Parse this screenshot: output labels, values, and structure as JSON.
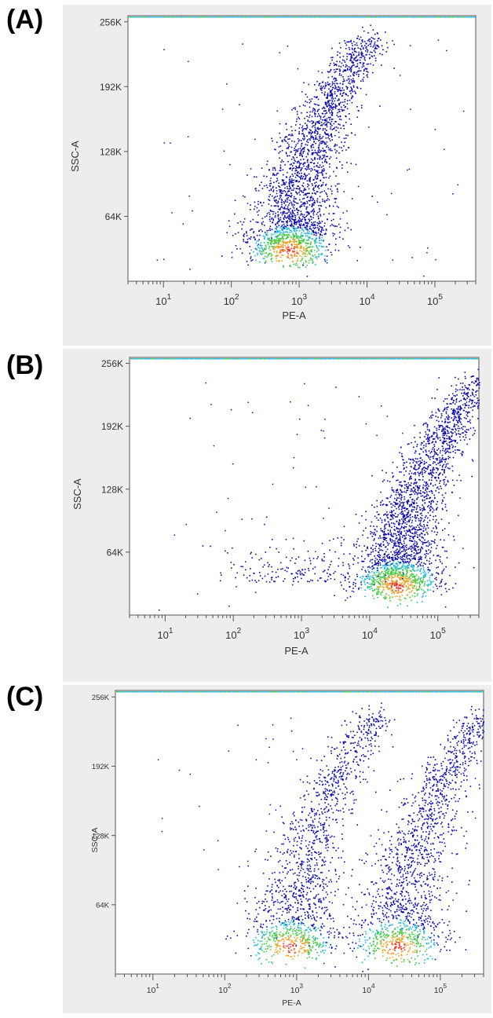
{
  "colors": {
    "panel_background": "#ededed",
    "plot_background": "#ffffff",
    "axis": "#555555",
    "density_low": "#0a0aa8",
    "density_mid": "#1fb8d6",
    "density_high": "#3ec93e",
    "density_peak": "#e8302a"
  },
  "chart_data": [
    {
      "type": "scatter",
      "panel_label": "(A)",
      "xlabel": "PE-A",
      "ylabel": "SSC-A",
      "x_scale": "log",
      "xlim": [
        3,
        400000
      ],
      "ylim": [
        0,
        262000
      ],
      "x_ticks": [
        {
          "value": 10,
          "base": "10",
          "exp": "1"
        },
        {
          "value": 100,
          "base": "10",
          "exp": "2"
        },
        {
          "value": 1000,
          "base": "10",
          "exp": "3"
        },
        {
          "value": 10000,
          "base": "10",
          "exp": "4"
        },
        {
          "value": 100000,
          "base": "10",
          "exp": "5"
        }
      ],
      "y_ticks": [
        {
          "value": 64000,
          "label": "64K"
        },
        {
          "value": 128000,
          "label": "128K"
        },
        {
          "value": 192000,
          "label": "192K"
        },
        {
          "value": 256000,
          "label": "256K"
        }
      ],
      "populations": [
        {
          "center_x": 700,
          "center_y": 30000,
          "count": 2600,
          "shape": "hook"
        }
      ]
    },
    {
      "type": "scatter",
      "panel_label": "(B)",
      "xlabel": "PE-A",
      "ylabel": "SSC-A",
      "x_scale": "log",
      "xlim": [
        3,
        400000
      ],
      "ylim": [
        0,
        262000
      ],
      "x_ticks": [
        {
          "value": 10,
          "base": "10",
          "exp": "1"
        },
        {
          "value": 100,
          "base": "10",
          "exp": "2"
        },
        {
          "value": 1000,
          "base": "10",
          "exp": "3"
        },
        {
          "value": 10000,
          "base": "10",
          "exp": "4"
        },
        {
          "value": 100000,
          "base": "10",
          "exp": "5"
        }
      ],
      "y_ticks": [
        {
          "value": 64000,
          "label": "64K"
        },
        {
          "value": 128000,
          "label": "128K"
        },
        {
          "value": 192000,
          "label": "192K"
        },
        {
          "value": 256000,
          "label": "256K"
        }
      ],
      "populations": [
        {
          "center_x": 25000,
          "center_y": 30000,
          "count": 2600,
          "shape": "hook"
        },
        {
          "center_x": 800,
          "center_y": 40000,
          "count": 180,
          "shape": "diffuse"
        }
      ]
    },
    {
      "type": "scatter",
      "panel_label": "(C)",
      "xlabel": "PE-A",
      "ylabel": "SSC-A",
      "x_scale": "log",
      "xlim": [
        3,
        400000
      ],
      "ylim": [
        0,
        262000
      ],
      "x_ticks": [
        {
          "value": 10,
          "base": "10",
          "exp": "1"
        },
        {
          "value": 100,
          "base": "10",
          "exp": "2"
        },
        {
          "value": 1000,
          "base": "10",
          "exp": "3"
        },
        {
          "value": 10000,
          "base": "10",
          "exp": "4"
        },
        {
          "value": 100000,
          "base": "10",
          "exp": "5"
        }
      ],
      "y_ticks": [
        {
          "value": 64000,
          "label": "64K"
        },
        {
          "value": 128000,
          "label": "128K"
        },
        {
          "value": 192000,
          "label": "192K"
        },
        {
          "value": 256000,
          "label": "256K"
        }
      ],
      "populations": [
        {
          "center_x": 800,
          "center_y": 25000,
          "count": 1500,
          "shape": "hook"
        },
        {
          "center_x": 25000,
          "center_y": 25000,
          "count": 1700,
          "shape": "hook"
        }
      ]
    }
  ]
}
